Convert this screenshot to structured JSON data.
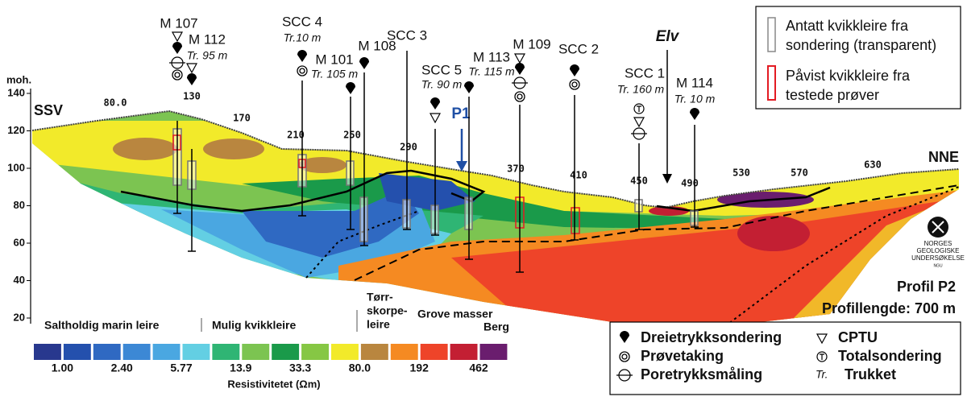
{
  "axis": {
    "label": "moh.",
    "ticks": [
      20,
      40,
      60,
      80,
      100,
      120,
      140
    ]
  },
  "directions": {
    "left": "SSV",
    "right": "NNE"
  },
  "distance_labels": [
    "80.0",
    "130",
    "170",
    "210",
    "250",
    "290",
    "370",
    "410",
    "450",
    "490",
    "530",
    "570",
    "630"
  ],
  "boreholes": [
    {
      "name": "M 107"
    },
    {
      "name": "M 112",
      "note": "Tr. 95 m"
    },
    {
      "name": "SCC 4",
      "note": "Tr.10 m"
    },
    {
      "name": "M 101",
      "note": "Tr. 105 m"
    },
    {
      "name": "M 108"
    },
    {
      "name": "SCC 3"
    },
    {
      "name": "SCC 5",
      "note": "Tr. 90 m"
    },
    {
      "name": "M 113",
      "note": "Tr. 115 m"
    },
    {
      "name": "M 109"
    },
    {
      "name": "SCC 2"
    },
    {
      "name": "SCC 1",
      "note": "Tr. 160 m"
    },
    {
      "name": "M 114",
      "note": "Tr. 10 m"
    }
  ],
  "annotations": {
    "river": "Elv",
    "profile_marker": "P1"
  },
  "zones": [
    {
      "lines": [
        "Saltholdig marin leire"
      ]
    },
    {
      "lines": [
        "Mulig kvikkleire"
      ]
    },
    {
      "lines": [
        "Tørr-",
        "skorpe-",
        "leire"
      ]
    },
    {
      "lines": [
        "Grove masser"
      ]
    },
    {
      "lines": [
        "Berg"
      ]
    }
  ],
  "profile": {
    "name": "Profil P2",
    "length": "Profillengde: 700 m"
  },
  "resistivity_legend": {
    "title": "Resistivitetet (Ωm)",
    "colors": [
      "#28388e",
      "#2450ad",
      "#2f69c2",
      "#3c88d5",
      "#4aa7e1",
      "#63cfe3",
      "#2fb574",
      "#7cc451",
      "#1a9a4a",
      "#86c744",
      "#f2ea2a",
      "#b9863f",
      "#f58a22",
      "#ee4429",
      "#c31f33",
      "#6a1d6e"
    ],
    "labels": [
      "1.00",
      "2.40",
      "5.77",
      "13.9",
      "33.3",
      "80.0",
      "192",
      "462"
    ]
  },
  "section_legend": [
    {
      "lines": [
        "Antatt kvikkleire fra",
        "sondering (transparent)"
      ]
    },
    {
      "lines": [
        "Påvist kvikkleire fra",
        "testede prøver"
      ]
    }
  ],
  "symbol_legend": [
    {
      "label": "Dreietrykksondering"
    },
    {
      "label": "Prøvetaking"
    },
    {
      "label": "Poretrykksmåling"
    },
    {
      "label": "CPTU"
    },
    {
      "label": "Totalsondering"
    },
    {
      "symbol": "Tr.",
      "label": "Trukket"
    }
  ],
  "logo": {
    "lines": [
      "NORGES",
      "GEOLOGISKE",
      "UNDERSØKELSE",
      "NGU"
    ]
  }
}
